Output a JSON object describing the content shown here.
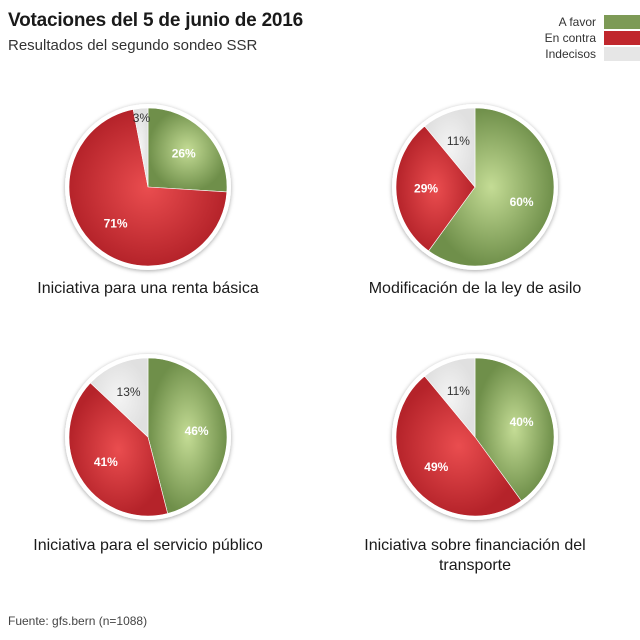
{
  "header": {
    "title": "Votaciones del 5 de junio de 2016",
    "subtitle": "Resultados del segundo sondeo SSR"
  },
  "legend": [
    {
      "label": "A favor",
      "color": "#7d9a56"
    },
    {
      "label": "En contra",
      "color": "#c0272d"
    },
    {
      "label": "Indecisos",
      "color": "#e6e6e6"
    }
  ],
  "source": "Fuente: gfs.bern (n=1088)",
  "chart_data": [
    {
      "type": "pie",
      "title": "Iniciativa para una renta básica",
      "labels": [
        "A favor",
        "En contra",
        "Indecisos"
      ],
      "values": [
        26,
        71,
        3
      ]
    },
    {
      "type": "pie",
      "title": "Modificación de la ley de asilo",
      "labels": [
        "A favor",
        "En contra",
        "Indecisos"
      ],
      "values": [
        60,
        29,
        11
      ]
    },
    {
      "type": "pie",
      "title": "Iniciativa para el servicio público",
      "labels": [
        "A favor",
        "En contra",
        "Indecisos"
      ],
      "values": [
        46,
        41,
        13
      ]
    },
    {
      "type": "pie",
      "title": "Iniciativa sobre financiación del transporte",
      "labels": [
        "A favor",
        "En contra",
        "Indecisos"
      ],
      "values": [
        40,
        49,
        11
      ]
    }
  ]
}
